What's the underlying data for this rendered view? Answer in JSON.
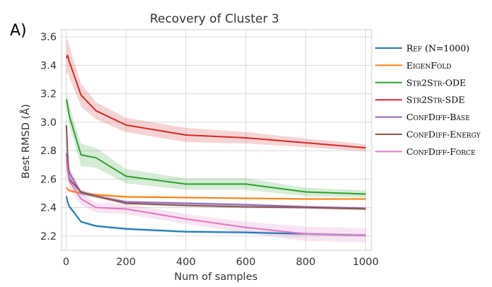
{
  "panel_label": "A)",
  "chart_data": {
    "type": "line",
    "title": "Recovery of Cluster 3",
    "xlabel": "Num of samples",
    "ylabel": "Best RMSD (Å)",
    "xlim": [
      -15,
      1020
    ],
    "ylim": [
      2.1,
      3.65
    ],
    "xticks": [
      0,
      200,
      400,
      600,
      800,
      1000
    ],
    "yticks": [
      2.2,
      2.4,
      2.6,
      2.8,
      3.0,
      3.2,
      3.4,
      3.6
    ],
    "xtick_labels": [
      "0",
      "200",
      "400",
      "600",
      "800",
      "1000"
    ],
    "ytick_labels": [
      "2.2",
      "2.4",
      "2.6",
      "2.8",
      "3.0",
      "3.2",
      "3.4",
      "3.6"
    ],
    "grid": true,
    "legend_position": "right-outside",
    "x": [
      1,
      5,
      10,
      50,
      100,
      200,
      400,
      600,
      800,
      1000
    ],
    "series": [
      {
        "name": "Ref (N=1000)",
        "color": "#1f77b4",
        "values": [
          2.48,
          2.44,
          2.41,
          2.3,
          2.27,
          2.25,
          2.23,
          2.225,
          2.215,
          2.205
        ],
        "band": [
          0.015,
          0.015,
          0.015,
          0.01,
          0.01,
          0.01,
          0.01,
          0.01,
          0.01,
          0.01
        ]
      },
      {
        "name": "EigenFold",
        "color": "#ff7f0e",
        "values": [
          2.54,
          2.53,
          2.52,
          2.5,
          2.49,
          2.475,
          2.47,
          2.465,
          2.46,
          2.46
        ],
        "band": [
          0.01,
          0.01,
          0.01,
          0.008,
          0.008,
          0.008,
          0.006,
          0.006,
          0.006,
          0.006
        ]
      },
      {
        "name": "Str2Str-ODE",
        "color": "#2ca02c",
        "values": [
          3.16,
          3.12,
          3.05,
          2.77,
          2.75,
          2.62,
          2.565,
          2.565,
          2.51,
          2.495
        ],
        "band": [
          0.06,
          0.06,
          0.07,
          0.08,
          0.07,
          0.05,
          0.04,
          0.04,
          0.03,
          0.025
        ]
      },
      {
        "name": "Str2Str-SDE",
        "color": "#d62728",
        "values": [
          3.45,
          3.47,
          3.43,
          3.19,
          3.08,
          2.98,
          2.91,
          2.89,
          2.855,
          2.82
        ],
        "band": [
          0.12,
          0.12,
          0.11,
          0.08,
          0.06,
          0.05,
          0.05,
          0.04,
          0.03,
          0.025
        ]
      },
      {
        "name": "ConfDiff-Base",
        "color": "#9467bd",
        "values": [
          2.78,
          2.72,
          2.65,
          2.5,
          2.48,
          2.44,
          2.43,
          2.42,
          2.405,
          2.395
        ],
        "band": [
          0.05,
          0.05,
          0.04,
          0.02,
          0.015,
          0.01,
          0.01,
          0.01,
          0.01,
          0.01
        ]
      },
      {
        "name": "ConfDiff-Energy",
        "color": "#8c564b",
        "values": [
          2.98,
          2.78,
          2.6,
          2.51,
          2.48,
          2.43,
          2.415,
          2.405,
          2.4,
          2.39
        ],
        "band": [
          0.04,
          0.04,
          0.03,
          0.015,
          0.01,
          0.01,
          0.01,
          0.01,
          0.01,
          0.01
        ]
      },
      {
        "name": "ConfDiff-Force",
        "color": "#e377c2",
        "values": [
          2.74,
          2.66,
          2.59,
          2.46,
          2.4,
          2.39,
          2.32,
          2.26,
          2.215,
          2.205
        ],
        "band": [
          0.07,
          0.06,
          0.05,
          0.04,
          0.035,
          0.035,
          0.035,
          0.04,
          0.05,
          0.05
        ]
      }
    ]
  }
}
